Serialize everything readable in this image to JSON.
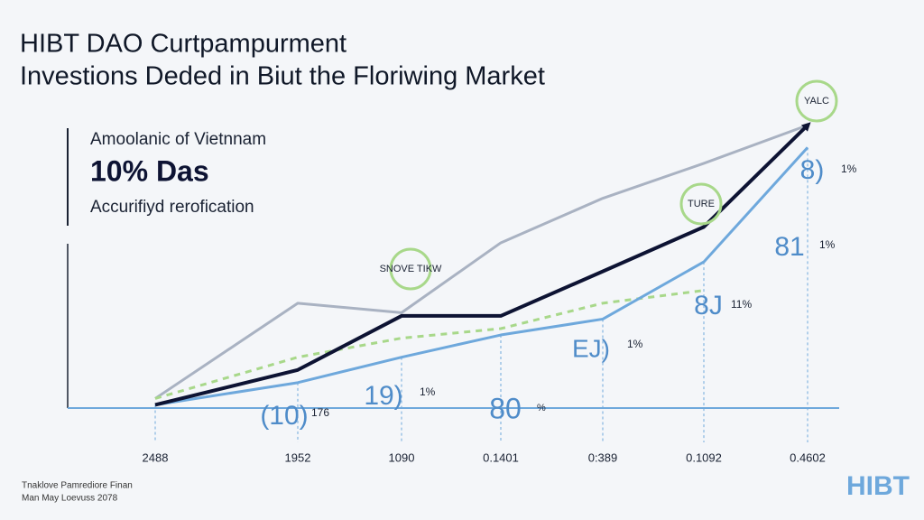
{
  "chart_data": {
    "type": "line",
    "title": [
      "HIBT DAO Curtpampurment",
      "Investions Deded in Biut the Floriwing Market"
    ],
    "side_panel": {
      "label": "Amoolanic of Vietnnam",
      "headline": "10% Das",
      "caption": "Accurifiyd rerofication"
    },
    "categories": [
      "2488",
      "1952",
      "1090",
      "0.1401",
      "0:389",
      "0.1092",
      "0.4602"
    ],
    "series": [
      {
        "color": "#a9b2c2",
        "values": [
          3,
          33,
          30,
          52,
          66,
          77,
          89
        ]
      },
      {
        "color": "#a8d88a",
        "dashed": true,
        "values": [
          3,
          16,
          22,
          25,
          33,
          37,
          null
        ]
      },
      {
        "color": "#6ea8dc",
        "values": [
          1,
          8,
          16,
          23,
          28,
          46,
          82
        ]
      },
      {
        "color": "#0d1333",
        "arrow": true,
        "values": [
          1,
          12,
          29,
          29,
          43,
          57,
          89
        ]
      }
    ],
    "ylim": [
      0,
      100
    ],
    "annotations": [
      "SNOVE TIKW",
      "TURE",
      "YALC"
    ],
    "data_labels": [
      "(10)",
      "176",
      "19)",
      "1%",
      "80",
      "%",
      "EJ)",
      "1%",
      "8J",
      "11%",
      "81",
      "1%",
      "8)",
      "1%"
    ],
    "footer": [
      "Tnaklove Pamrediore Finan",
      "Man May Loevuss 2078"
    ],
    "logo": "HIBT"
  }
}
